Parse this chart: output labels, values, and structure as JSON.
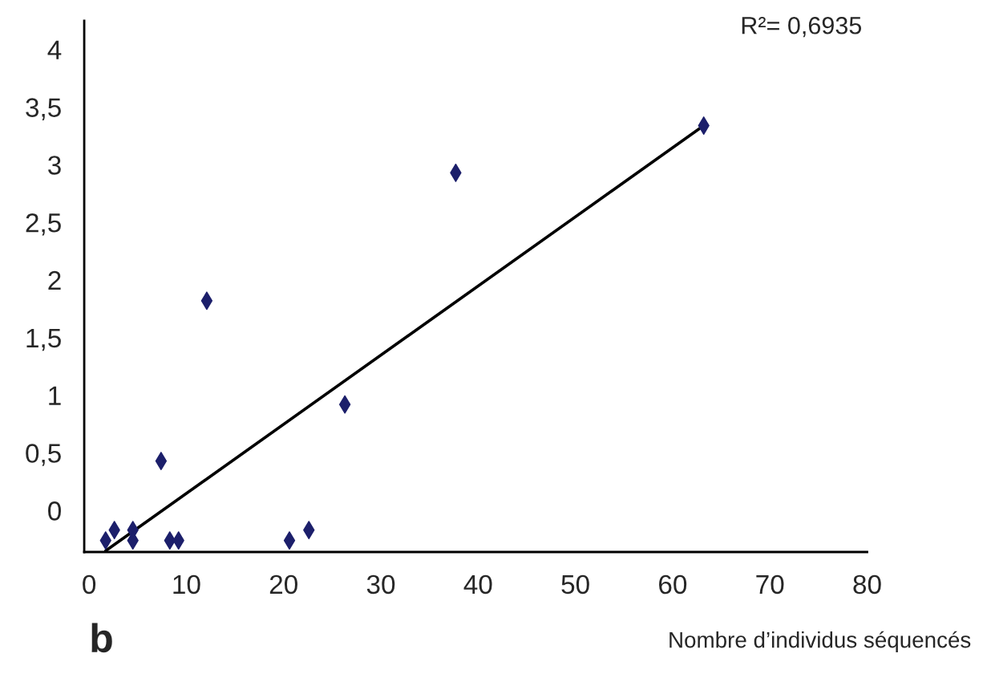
{
  "chart_data": {
    "type": "scatter",
    "xlabel": "Nombre d’individus séquencés",
    "annotations": [
      "R²= 0,6935",
      "b"
    ],
    "series": [
      {
        "color": "#1c1f6b",
        "marker": "diamond",
        "x": [
          1.7,
          2.6,
          4.5,
          4.5,
          7.4,
          8.3,
          9.2,
          12.1,
          20.6,
          22.6,
          26.3,
          37.7,
          63.2
        ],
        "values": [
          -0.26,
          -0.17,
          -0.17,
          -0.26,
          0.43,
          -0.26,
          -0.26,
          1.82,
          -0.26,
          -0.17,
          0.92,
          2.93,
          3.34
        ]
      },
      {
        "type": "line",
        "color": "#000000",
        "x": [
          1.7,
          63.2
        ],
        "values": [
          -0.35,
          3.34
        ]
      }
    ],
    "xlim": [
      -0.5,
      80
    ],
    "xticks": [
      0,
      10,
      20,
      30,
      40,
      50,
      60,
      70,
      80
    ],
    "ylim": [
      -0.36,
      4.25
    ],
    "yticks": [
      0,
      {
        "value": 0.5,
        "label": "0,5"
      },
      1,
      {
        "value": 1.5,
        "label": "1,5"
      },
      2,
      {
        "value": 2.5,
        "label": "2,5"
      },
      3,
      {
        "value": 3.5,
        "label": "3,5"
      },
      4
    ],
    "grid": false,
    "legend": false
  }
}
